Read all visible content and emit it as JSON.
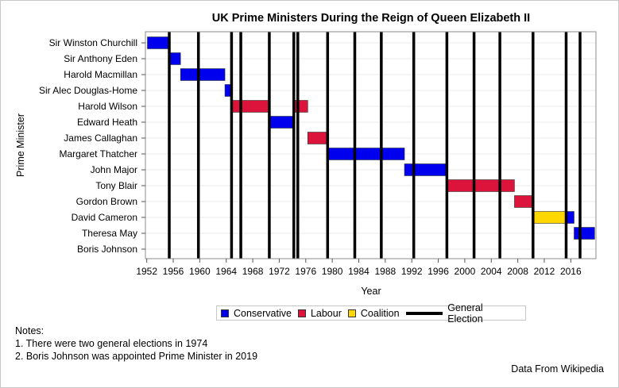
{
  "chart_data": {
    "type": "gantt",
    "title": "UK Prime Ministers During the Reign of Queen Elizabeth II",
    "xlabel": "Year",
    "ylabel": "Prime Minister",
    "xlim": [
      1951.8,
      2019.8
    ],
    "xticks": [
      1952,
      1956,
      1960,
      1964,
      1968,
      1972,
      1976,
      1980,
      1984,
      1988,
      1992,
      1996,
      2000,
      2004,
      2008,
      2012,
      2016
    ],
    "categories": [
      "Sir Winston Churchill",
      "Sir Anthony Eden",
      "Harold Macmillan",
      "Sir Alec Douglas-Home",
      "Harold Wilson",
      "Edward Heath",
      "James Callaghan",
      "Margaret Thatcher",
      "John Major",
      "Tony Blair",
      "Gordon Brown",
      "David Cameron",
      "Theresa May",
      "Boris Johnson"
    ],
    "bars": [
      {
        "pm": "Sir Winston Churchill",
        "start": 1952.1,
        "end": 1955.3,
        "party": "Conservative"
      },
      {
        "pm": "Sir Anthony Eden",
        "start": 1955.3,
        "end": 1957.1,
        "party": "Conservative"
      },
      {
        "pm": "Harold Macmillan",
        "start": 1957.1,
        "end": 1963.8,
        "party": "Conservative"
      },
      {
        "pm": "Sir Alec Douglas-Home",
        "start": 1963.8,
        "end": 1964.8,
        "party": "Conservative"
      },
      {
        "pm": "Harold Wilson",
        "start": 1964.8,
        "end": 1970.5,
        "party": "Labour"
      },
      {
        "pm": "Harold Wilson",
        "start": 1974.2,
        "end": 1976.3,
        "party": "Labour"
      },
      {
        "pm": "Edward Heath",
        "start": 1970.5,
        "end": 1974.2,
        "party": "Conservative"
      },
      {
        "pm": "James Callaghan",
        "start": 1976.3,
        "end": 1979.3,
        "party": "Labour"
      },
      {
        "pm": "Margaret Thatcher",
        "start": 1979.3,
        "end": 1990.9,
        "party": "Conservative"
      },
      {
        "pm": "John Major",
        "start": 1990.9,
        "end": 1997.4,
        "party": "Conservative"
      },
      {
        "pm": "Tony Blair",
        "start": 1997.4,
        "end": 2007.5,
        "party": "Labour"
      },
      {
        "pm": "Gordon Brown",
        "start": 2007.5,
        "end": 2010.4,
        "party": "Labour"
      },
      {
        "pm": "David Cameron",
        "start": 2010.4,
        "end": 2015.4,
        "party": "Coalition"
      },
      {
        "pm": "David Cameron",
        "start": 2015.4,
        "end": 2016.5,
        "party": "Conservative"
      },
      {
        "pm": "Theresa May",
        "start": 2016.5,
        "end": 2019.6,
        "party": "Conservative"
      }
    ],
    "elections": [
      1955.4,
      1959.8,
      1964.8,
      1966.2,
      1970.5,
      1974.2,
      1974.8,
      1979.3,
      1983.4,
      1987.4,
      1992.3,
      1997.3,
      2001.4,
      2005.3,
      2010.3,
      2015.3,
      2017.4
    ],
    "party_colors": {
      "Conservative": "#0000ee",
      "Labour": "#dc143c",
      "Coalition": "#ffd700"
    },
    "election_color": "#000000"
  },
  "legend": {
    "conservative": "Conservative",
    "labour": "Labour",
    "coalition": "Coalition",
    "general_election": "General Election"
  },
  "notes": {
    "heading": "Notes:",
    "line1": "1. There were two general elections in 1974",
    "line2": "2. Boris Johnson was appointed Prime Minister in 2019"
  },
  "credit": "Data From Wikipedia"
}
